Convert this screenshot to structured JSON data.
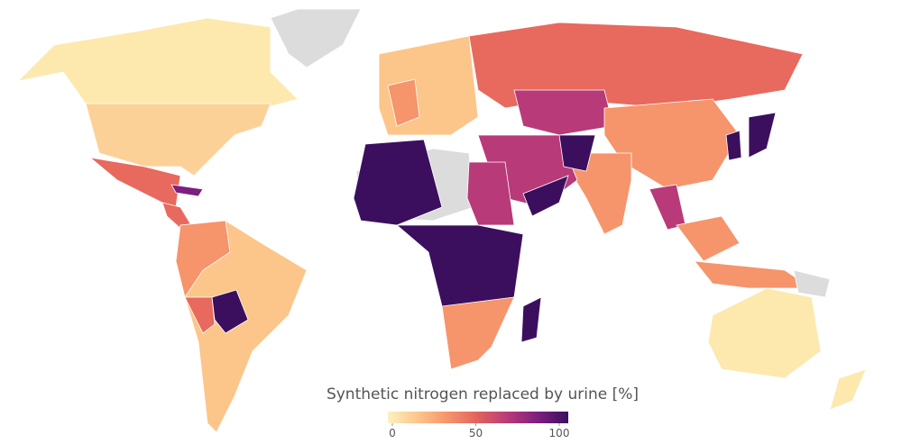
{
  "legend": {
    "title": "Synthetic nitrogen replaced by urine [%]",
    "lim": [
      0,
      100
    ],
    "ticks": [
      0,
      50,
      100
    ],
    "colors": [
      "#fcf2c0",
      "#fcc58a",
      "#f6946b",
      "#e1625e",
      "#b83a78",
      "#7c1f7f",
      "#3b0f5e"
    ]
  }
}
